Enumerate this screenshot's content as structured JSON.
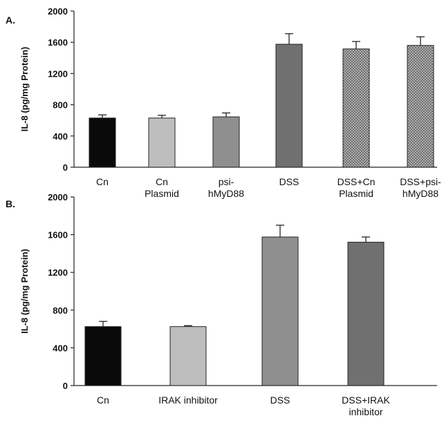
{
  "chart_data": [
    {
      "type": "bar",
      "panel_label": "A.",
      "categories": [
        [
          "Cn"
        ],
        [
          "Cn",
          "Plasmid"
        ],
        [
          "psi-",
          "hMyD88"
        ],
        [
          "DSS"
        ],
        [
          "DSS+Cn",
          "Plasmid"
        ],
        [
          "DSS+psi-",
          "hMyD88"
        ]
      ],
      "values": [
        630,
        630,
        645,
        1575,
        1515,
        1560
      ],
      "errors": [
        40,
        35,
        50,
        135,
        95,
        110
      ],
      "ylabel": "IL-8 (pg/mg Protein)",
      "ylim": [
        0,
        2000
      ],
      "yticks": [
        0,
        400,
        800,
        1200,
        1600,
        2000
      ],
      "fills": [
        "black",
        "light-gray",
        "medium-gray",
        "dark-gray",
        "checkered",
        "checkered"
      ]
    },
    {
      "type": "bar",
      "panel_label": "B.",
      "categories": [
        [
          "Cn"
        ],
        [
          "IRAK inhibitor"
        ],
        [
          "DSS"
        ],
        [
          "DSS+IRAK",
          "inhibitor"
        ]
      ],
      "values": [
        625,
        625,
        1575,
        1520
      ],
      "errors": [
        55,
        10,
        125,
        55
      ],
      "ylabel": "IL-8 (pg/mg Protein)",
      "ylim": [
        0,
        2000
      ],
      "yticks": [
        0,
        400,
        800,
        1200,
        1600,
        2000
      ],
      "fills": [
        "black",
        "light-gray",
        "medium-gray",
        "dark-gray"
      ]
    }
  ],
  "colors": {
    "black": "#0a0a0a",
    "light-gray": "#bdbdbd",
    "medium-gray": "#8f8f8f",
    "dark-gray": "#707070",
    "checkered": "#9a9a9a"
  }
}
